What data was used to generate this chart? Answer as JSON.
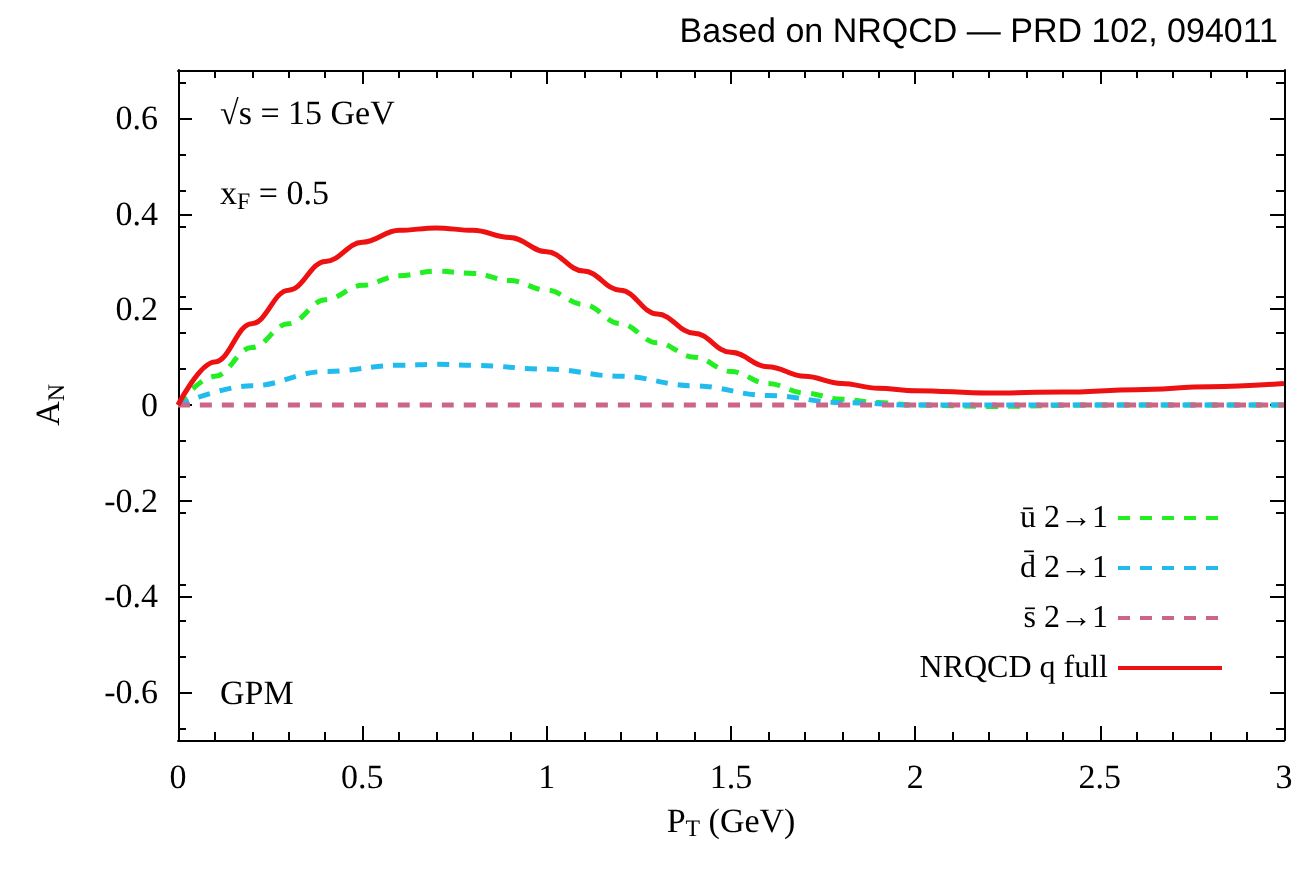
{
  "chart_data": {
    "type": "line",
    "title": "Based on NRQCD — PRD 102, 094011",
    "xlabel": "P$_{T}$ (GeV)",
    "ylabel": "A$_{N}$",
    "annotations": [
      "√s = 15 GeV",
      "x$_{F}$ = 0.5",
      "GPM"
    ],
    "xlim": [
      0,
      3
    ],
    "xticks": [
      0,
      0.5,
      1,
      1.5,
      2,
      2.5,
      3
    ],
    "ylim": [
      -0.7,
      0.7
    ],
    "yticks": [
      -0.6,
      -0.4,
      -0.2,
      0,
      0.2,
      0.4,
      0.6
    ],
    "grid": false,
    "legend": "bottom right",
    "marker": "none",
    "series": [
      {
        "name": "ū 2→1",
        "color": "#22ee22",
        "line_style": "dashed",
        "x": [
          0,
          0.1,
          0.2,
          0.3,
          0.4,
          0.5,
          0.6,
          0.7,
          0.8,
          0.9,
          1.0,
          1.1,
          1.2,
          1.3,
          1.4,
          1.5,
          1.6,
          1.7,
          1.8,
          1.9,
          2.0,
          2.2,
          2.5,
          3.0
        ],
        "values": [
          0,
          0.06,
          0.12,
          0.17,
          0.22,
          0.25,
          0.27,
          0.28,
          0.275,
          0.26,
          0.24,
          0.21,
          0.17,
          0.13,
          0.1,
          0.07,
          0.045,
          0.025,
          0.012,
          0.005,
          0,
          -0.003,
          0,
          0
        ]
      },
      {
        "name": "d̄ 2→1",
        "color": "#22bbee",
        "line_style": "dashed",
        "x": [
          0,
          0.2,
          0.4,
          0.6,
          0.7,
          0.8,
          1.0,
          1.2,
          1.4,
          1.6,
          1.8,
          2.0,
          3.0
        ],
        "values": [
          0,
          0.04,
          0.07,
          0.083,
          0.085,
          0.083,
          0.075,
          0.06,
          0.04,
          0.02,
          0.005,
          0,
          0
        ]
      },
      {
        "name": "s̄ 2→1",
        "color": "#cc6688",
        "line_style": "dashed",
        "x": [
          0,
          3
        ],
        "values": [
          0,
          0
        ]
      },
      {
        "name": "NRQCD q full",
        "color": "#ee1111",
        "line_style": "solid",
        "x": [
          0,
          0.1,
          0.2,
          0.3,
          0.4,
          0.5,
          0.6,
          0.7,
          0.8,
          0.9,
          1.0,
          1.1,
          1.2,
          1.3,
          1.4,
          1.5,
          1.6,
          1.7,
          1.8,
          1.9,
          2.0,
          2.2,
          2.4,
          2.6,
          2.8,
          3.0
        ],
        "values": [
          0,
          0.09,
          0.17,
          0.24,
          0.3,
          0.34,
          0.365,
          0.37,
          0.365,
          0.35,
          0.32,
          0.28,
          0.24,
          0.19,
          0.15,
          0.11,
          0.08,
          0.06,
          0.045,
          0.035,
          0.03,
          0.025,
          0.027,
          0.032,
          0.038,
          0.045
        ]
      }
    ]
  }
}
